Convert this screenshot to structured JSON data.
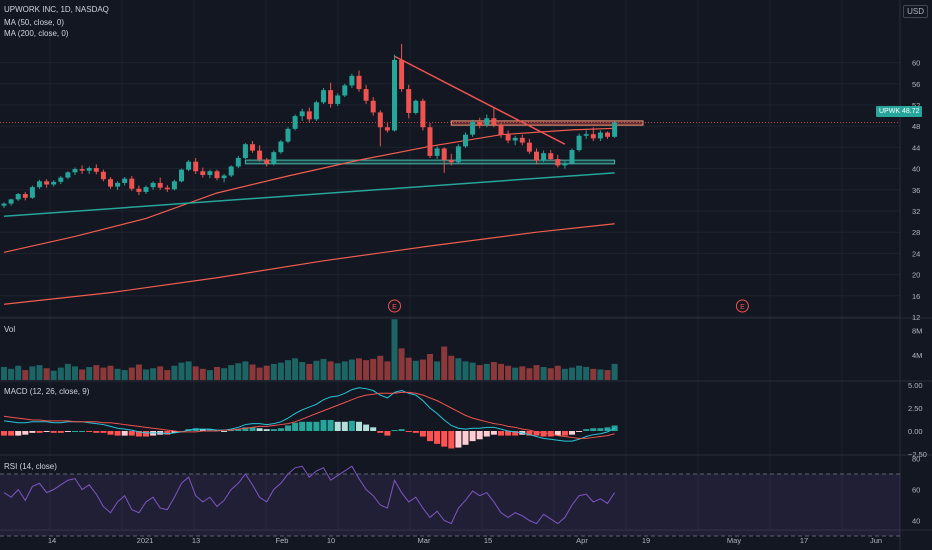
{
  "header": {
    "symbol_line": "UPWORK INC, 1D, NASDAQ",
    "ma50_label": "MA (50, close, 0)",
    "ma200_label": "MA (200, close, 0)",
    "currency": "USD"
  },
  "price_badge": {
    "ticker": "UPWK",
    "value": "48.72"
  },
  "panes": {
    "volume_label": "Vol",
    "macd_label": "MACD (12, 26, close, 9)",
    "rsi_label": "RSI (14, close)"
  },
  "earnings_marker": "E",
  "colors": {
    "background": "#131722",
    "up": "#26a69a",
    "down": "#ef5350",
    "ma50": "#f05d4e",
    "ma200": "#f05d4e",
    "support_line": "#26a69a",
    "rsi": "#7e57c2",
    "macd_line": "#26c6da",
    "signal_line": "#ef5350"
  },
  "chart_data": {
    "type": "candlestick",
    "price_axis_ticks": [
      12,
      16,
      20,
      24,
      28,
      32,
      36,
      40,
      44,
      48,
      52,
      56,
      60
    ],
    "volume_axis_ticks": [
      "4M",
      "8M"
    ],
    "macd_axis_ticks": [
      "5.00",
      "2.50",
      "0.00",
      "−2.50"
    ],
    "rsi_axis_ticks": [
      40,
      60,
      80
    ],
    "time_axis_labels": [
      "14",
      "2021",
      "13",
      "Feb",
      "10",
      "Mar",
      "15",
      "Apr",
      "19",
      "May",
      "17",
      "Jun"
    ],
    "candles": [
      [
        33.0,
        33.6,
        32.6,
        33.4
      ],
      [
        33.4,
        34.3,
        33.0,
        34.2
      ],
      [
        34.2,
        35.4,
        33.9,
        35.2
      ],
      [
        35.2,
        35.6,
        34.0,
        34.5
      ],
      [
        34.5,
        36.8,
        34.3,
        36.5
      ],
      [
        36.5,
        37.9,
        36.2,
        37.6
      ],
      [
        37.6,
        38.0,
        36.4,
        37.0
      ],
      [
        37.0,
        37.8,
        36.6,
        37.5
      ],
      [
        37.5,
        38.6,
        37.1,
        38.3
      ],
      [
        38.3,
        39.5,
        38.0,
        39.3
      ],
      [
        39.3,
        40.2,
        38.8,
        39.9
      ],
      [
        39.9,
        40.6,
        39.0,
        39.6
      ],
      [
        39.6,
        40.4,
        39.0,
        40.1
      ],
      [
        40.1,
        40.8,
        38.9,
        39.4
      ],
      [
        39.4,
        39.8,
        37.6,
        38.0
      ],
      [
        38.0,
        38.4,
        36.2,
        36.6
      ],
      [
        36.6,
        37.6,
        36.0,
        37.3
      ],
      [
        37.3,
        38.4,
        36.8,
        38.1
      ],
      [
        38.1,
        38.6,
        35.8,
        36.2
      ],
      [
        36.2,
        36.8,
        35.0,
        35.6
      ],
      [
        35.6,
        36.8,
        35.2,
        36.5
      ],
      [
        36.5,
        37.6,
        36.0,
        37.3
      ],
      [
        37.3,
        38.3,
        36.0,
        36.4
      ],
      [
        36.4,
        36.9,
        35.6,
        36.1
      ],
      [
        36.1,
        37.9,
        35.9,
        37.6
      ],
      [
        37.6,
        40.0,
        37.4,
        39.8
      ],
      [
        39.8,
        41.6,
        39.5,
        41.3
      ],
      [
        41.3,
        42.0,
        39.0,
        39.5
      ],
      [
        39.5,
        40.2,
        38.3,
        38.8
      ],
      [
        38.8,
        39.8,
        38.2,
        39.5
      ],
      [
        39.5,
        39.8,
        37.8,
        38.2
      ],
      [
        38.2,
        39.0,
        37.4,
        38.7
      ],
      [
        38.7,
        40.6,
        38.4,
        40.4
      ],
      [
        40.4,
        42.4,
        40.1,
        42.0
      ],
      [
        42.0,
        44.8,
        41.8,
        44.6
      ],
      [
        44.6,
        45.2,
        43.0,
        43.4
      ],
      [
        43.4,
        44.4,
        41.3,
        41.7
      ],
      [
        41.7,
        42.0,
        40.4,
        40.9
      ],
      [
        40.9,
        43.4,
        40.6,
        43.1
      ],
      [
        43.1,
        45.4,
        42.8,
        45.1
      ],
      [
        45.1,
        47.8,
        44.8,
        47.5
      ],
      [
        47.5,
        50.2,
        47.2,
        49.9
      ],
      [
        49.9,
        51.3,
        49.0,
        50.8
      ],
      [
        50.8,
        51.5,
        48.8,
        49.3
      ],
      [
        49.3,
        52.8,
        49.0,
        52.5
      ],
      [
        52.5,
        55.2,
        52.2,
        54.8
      ],
      [
        54.8,
        56.2,
        51.5,
        52.2
      ],
      [
        52.2,
        54.2,
        51.8,
        53.8
      ],
      [
        53.8,
        56.0,
        53.5,
        55.7
      ],
      [
        55.7,
        57.9,
        55.2,
        57.5
      ],
      [
        57.5,
        58.5,
        54.5,
        55.0
      ],
      [
        55.0,
        55.8,
        52.2,
        52.8
      ],
      [
        52.8,
        53.5,
        50.0,
        50.6
      ],
      [
        50.6,
        51.0,
        44.2,
        47.8
      ],
      [
        47.8,
        48.6,
        46.8,
        47.2
      ],
      [
        47.2,
        61.5,
        47.0,
        60.5
      ],
      [
        60.5,
        63.5,
        54.5,
        55.0
      ],
      [
        55.0,
        55.8,
        49.5,
        50.5
      ],
      [
        50.5,
        53.0,
        50.2,
        52.8
      ],
      [
        52.8,
        53.2,
        47.2,
        47.8
      ],
      [
        47.8,
        48.6,
        42.0,
        42.4
      ],
      [
        42.4,
        44.2,
        41.8,
        43.8
      ],
      [
        43.8,
        44.0,
        39.2,
        41.6
      ],
      [
        41.6,
        42.8,
        40.6,
        41.2
      ],
      [
        41.2,
        44.6,
        41.0,
        44.2
      ],
      [
        44.2,
        46.8,
        43.9,
        46.4
      ],
      [
        46.4,
        49.2,
        46.0,
        48.8
      ],
      [
        48.8,
        49.6,
        47.6,
        48.2
      ],
      [
        48.2,
        50.2,
        47.8,
        49.5
      ],
      [
        49.5,
        51.5,
        47.8,
        48.3
      ],
      [
        48.3,
        48.6,
        45.8,
        46.4
      ],
      [
        46.4,
        47.2,
        44.8,
        45.3
      ],
      [
        45.3,
        46.2,
        44.4,
        45.8
      ],
      [
        45.8,
        46.4,
        44.4,
        44.9
      ],
      [
        44.9,
        45.6,
        42.8,
        43.2
      ],
      [
        43.2,
        43.8,
        40.8,
        41.5
      ],
      [
        41.5,
        43.4,
        41.2,
        42.9
      ],
      [
        42.9,
        43.5,
        41.5,
        41.8
      ],
      [
        41.8,
        42.6,
        40.2,
        40.6
      ],
      [
        40.6,
        41.4,
        40.0,
        41.0
      ],
      [
        41.0,
        43.8,
        40.8,
        43.5
      ],
      [
        43.5,
        46.6,
        43.2,
        46.2
      ],
      [
        46.2,
        47.2,
        45.6,
        46.5
      ],
      [
        46.5,
        47.8,
        45.2,
        45.7
      ],
      [
        45.7,
        47.2,
        45.2,
        46.8
      ],
      [
        46.8,
        47.0,
        45.6,
        46.0
      ],
      [
        46.0,
        48.9,
        45.8,
        48.7
      ]
    ],
    "earnings_marker_x": 55,
    "earnings_marker_future_x": 104,
    "resistance_zone": {
      "from": 63,
      "to": 90,
      "low": 48.2,
      "high": 49.0
    },
    "support_zone": {
      "from": 34,
      "to": 86,
      "low": 40.9,
      "high": 41.6
    },
    "trendline": [
      [
        55,
        61.2
      ],
      [
        79,
        44.6
      ]
    ],
    "rising_support": [
      [
        0,
        31.0
      ],
      [
        86,
        39.2
      ]
    ],
    "ma50": [
      [
        0,
        24.2
      ],
      [
        10,
        27.2
      ],
      [
        20,
        30.6
      ],
      [
        30,
        35.4
      ],
      [
        40,
        38.6
      ],
      [
        50,
        41.6
      ],
      [
        60,
        44.2
      ],
      [
        70,
        46.4
      ],
      [
        80,
        47.3
      ],
      [
        86,
        47.6
      ]
    ],
    "ma200": [
      [
        0,
        14.4
      ],
      [
        15,
        16.6
      ],
      [
        30,
        19.4
      ],
      [
        45,
        22.6
      ],
      [
        60,
        25.4
      ],
      [
        75,
        28.0
      ],
      [
        86,
        29.6
      ]
    ],
    "volume": [
      2.1,
      1.8,
      2.3,
      1.6,
      2.2,
      2.4,
      1.9,
      1.5,
      2.0,
      2.6,
      2.2,
      1.7,
      2.1,
      2.4,
      2.0,
      2.3,
      1.8,
      1.6,
      2.0,
      2.5,
      1.7,
      1.9,
      2.2,
      1.6,
      2.3,
      2.8,
      3.0,
      2.2,
      1.8,
      1.6,
      2.1,
      1.9,
      2.4,
      2.7,
      3.0,
      2.5,
      2.0,
      2.3,
      2.6,
      2.8,
      3.2,
      3.5,
      2.9,
      2.6,
      3.1,
      3.4,
      3.0,
      2.7,
      3.0,
      3.3,
      3.5,
      3.2,
      3.4,
      3.9,
      3.0,
      9.8,
      5.1,
      3.6,
      3.1,
      3.3,
      4.2,
      3.0,
      5.4,
      3.9,
      3.5,
      3.0,
      2.8,
      2.4,
      2.6,
      2.9,
      2.6,
      2.3,
      2.0,
      2.2,
      1.9,
      2.4,
      2.1,
      1.9,
      2.3,
      1.8,
      2.0,
      2.3,
      2.1,
      1.8,
      1.7,
      1.6,
      2.6
    ],
    "macd_line": [
      1.1,
      1.0,
      0.9,
      0.9,
      1.0,
      1.0,
      1.0,
      0.9,
      0.9,
      1.0,
      1.0,
      1.0,
      0.9,
      0.8,
      0.7,
      0.5,
      0.3,
      0.2,
      0.1,
      -0.1,
      -0.2,
      -0.2,
      -0.2,
      -0.3,
      -0.2,
      -0.1,
      0.1,
      0.2,
      0.2,
      0.2,
      0.1,
      0.1,
      0.2,
      0.4,
      0.7,
      0.8,
      0.8,
      0.7,
      0.8,
      1.0,
      1.4,
      1.9,
      2.3,
      2.6,
      2.9,
      3.4,
      3.7,
      3.8,
      4.1,
      4.5,
      4.7,
      4.6,
      4.4,
      3.9,
      3.6,
      4.2,
      4.4,
      4.1,
      3.9,
      3.3,
      2.5,
      1.9,
      1.2,
      0.6,
      0.3,
      0.2,
      0.3,
      0.3,
      0.4,
      0.4,
      0.2,
      0.0,
      -0.1,
      -0.2,
      -0.4,
      -0.6,
      -0.8,
      -0.9,
      -1.0,
      -1.1,
      -1.1,
      -0.9,
      -0.6,
      -0.4,
      -0.3,
      -0.1,
      0.3
    ],
    "signal_line": [
      1.6,
      1.5,
      1.4,
      1.3,
      1.2,
      1.2,
      1.1,
      1.1,
      1.1,
      1.1,
      1.0,
      1.0,
      1.0,
      1.0,
      0.9,
      0.9,
      0.8,
      0.7,
      0.6,
      0.5,
      0.4,
      0.3,
      0.2,
      0.1,
      0.0,
      -0.1,
      -0.1,
      -0.1,
      0.0,
      0.0,
      0.0,
      0.1,
      0.1,
      0.2,
      0.3,
      0.4,
      0.5,
      0.5,
      0.6,
      0.7,
      0.8,
      1.0,
      1.3,
      1.6,
      1.9,
      2.2,
      2.5,
      2.8,
      3.1,
      3.4,
      3.7,
      3.9,
      4.0,
      4.1,
      4.1,
      4.1,
      4.2,
      4.2,
      4.1,
      3.9,
      3.6,
      3.3,
      2.9,
      2.5,
      2.1,
      1.7,
      1.4,
      1.2,
      1.0,
      0.8,
      0.7,
      0.5,
      0.4,
      0.2,
      0.1,
      -0.1,
      -0.2,
      -0.3,
      -0.5,
      -0.6,
      -0.7,
      -0.8,
      -0.8,
      -0.7,
      -0.6,
      -0.5,
      -0.3
    ],
    "rsi": [
      58,
      55,
      60,
      53,
      62,
      64,
      58,
      60,
      63,
      66,
      67,
      60,
      63,
      57,
      49,
      45,
      52,
      56,
      47,
      45,
      52,
      55,
      48,
      47,
      55,
      64,
      68,
      56,
      52,
      55,
      49,
      53,
      60,
      64,
      70,
      63,
      55,
      52,
      60,
      64,
      70,
      74,
      75,
      68,
      72,
      74,
      66,
      69,
      72,
      75,
      67,
      60,
      56,
      50,
      48,
      66,
      58,
      52,
      55,
      48,
      42,
      46,
      40,
      38,
      48,
      53,
      59,
      56,
      58,
      52,
      45,
      42,
      45,
      43,
      40,
      38,
      44,
      41,
      38,
      42,
      50,
      56,
      57,
      52,
      54,
      51,
      58
    ],
    "rsi_bands": [
      70,
      30
    ]
  }
}
